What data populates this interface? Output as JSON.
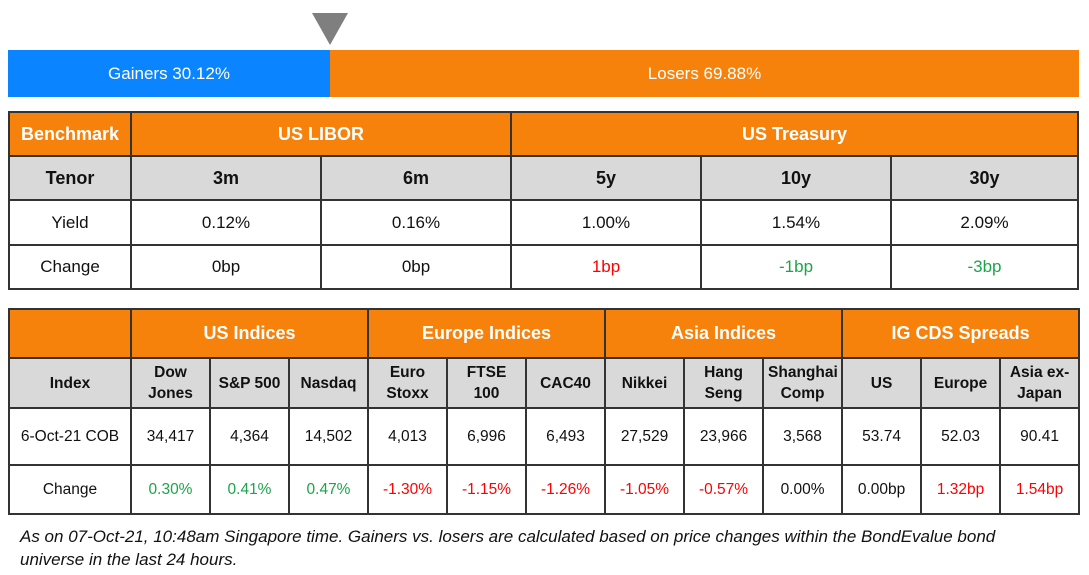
{
  "gainers_losers": {
    "gainers_label": "Gainers 30.12%",
    "losers_label": "Losers 69.88%",
    "gainers_pct": 30.12,
    "losers_pct": 69.88,
    "gainers_color": "#0a84ff",
    "losers_color": "#f7820b"
  },
  "rates": {
    "benchmark": "Benchmark",
    "us_libor": "US LIBOR",
    "us_treasury": "US Treasury",
    "tenor_label": "Tenor",
    "tenors": [
      "3m",
      "6m",
      "5y",
      "10y",
      "30y"
    ],
    "yield_label": "Yield",
    "yields": [
      "0.12%",
      "0.16%",
      "1.00%",
      "1.54%",
      "2.09%"
    ],
    "change_label": "Change",
    "changes": [
      "0bp",
      "0bp",
      "1bp",
      "-1bp",
      "-3bp"
    ]
  },
  "indices": {
    "groups": [
      "US Indices",
      "Europe Indices",
      "Asia Indices",
      "IG CDS Spreads"
    ],
    "index_label": "Index",
    "columns": [
      "Dow Jones",
      "S&P 500",
      "Nasdaq",
      "Euro Stoxx",
      "FTSE 100",
      "CAC40",
      "Nikkei",
      "Hang Seng",
      "Shanghai Comp",
      "US",
      "Europe",
      "Asia ex-Japan"
    ],
    "value_label": "6-Oct-21 COB",
    "values": [
      "34,417",
      "4,364",
      "14,502",
      "4,013",
      "6,996",
      "6,493",
      "27,529",
      "23,966",
      "3,568",
      "53.74",
      "52.03",
      "90.41"
    ],
    "change_label": "Change",
    "changes": [
      "0.30%",
      "0.41%",
      "0.47%",
      "-1.30%",
      "-1.15%",
      "-1.26%",
      "-1.05%",
      "-0.57%",
      "0.00%",
      "0.00bp",
      "1.32bp",
      "1.54bp"
    ]
  },
  "footnote": "As on 07-Oct-21, 10:48am Singapore time. Gainers vs. losers are calculated based on price changes within the BondEvalue bond universe in the last 24 hours."
}
